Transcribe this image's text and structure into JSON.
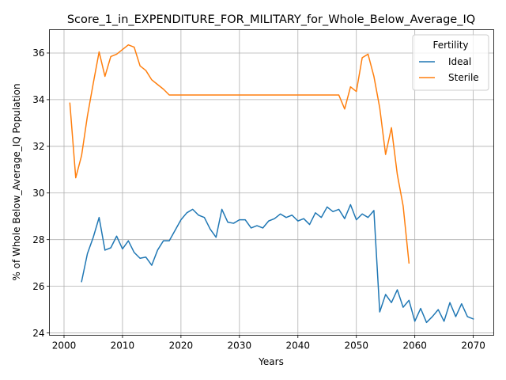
{
  "chart_data": {
    "type": "line",
    "title": "Score_1_in_EXPENDITURE_FOR_MILITARY_for_Whole_Below_Average_IQ",
    "xlabel": "Years",
    "ylabel": "% of Whole Below_Average_IQ Population",
    "xlim": [
      1997.5,
      2073.5
    ],
    "ylim": [
      23.9,
      37.0
    ],
    "xticks": [
      2000,
      2010,
      2020,
      2030,
      2040,
      2050,
      2060,
      2070
    ],
    "yticks": [
      24,
      26,
      28,
      30,
      32,
      34,
      36
    ],
    "grid": true,
    "legend": {
      "title": "Fertility",
      "placement": "top-right"
    },
    "series": [
      {
        "name": "Ideal",
        "color": "#1f77b4",
        "x": [
          2003,
          2004,
          2005,
          2006,
          2007,
          2008,
          2009,
          2010,
          2011,
          2012,
          2013,
          2014,
          2015,
          2016,
          2017,
          2018,
          2019,
          2020,
          2021,
          2022,
          2023,
          2024,
          2025,
          2026,
          2027,
          2028,
          2029,
          2030,
          2031,
          2032,
          2033,
          2034,
          2035,
          2036,
          2037,
          2038,
          2039,
          2040,
          2041,
          2042,
          2043,
          2044,
          2045,
          2046,
          2047,
          2048,
          2049,
          2050,
          2051,
          2052,
          2053,
          2054,
          2055,
          2056,
          2057,
          2058,
          2059,
          2060,
          2061,
          2062,
          2063,
          2064,
          2065,
          2066,
          2067,
          2068,
          2069,
          2070
        ],
        "y": [
          26.2,
          27.4,
          28.1,
          28.95,
          27.55,
          27.65,
          28.15,
          27.6,
          27.95,
          27.45,
          27.2,
          27.25,
          26.9,
          27.55,
          27.95,
          27.95,
          28.4,
          28.85,
          29.15,
          29.3,
          29.05,
          28.95,
          28.45,
          28.1,
          29.3,
          28.75,
          28.7,
          28.85,
          28.85,
          28.5,
          28.6,
          28.5,
          28.8,
          28.9,
          29.1,
          28.95,
          29.05,
          28.8,
          28.9,
          28.65,
          29.15,
          28.95,
          29.4,
          29.2,
          29.3,
          28.9,
          29.5,
          28.85,
          29.1,
          28.95,
          29.25,
          24.9,
          25.65,
          25.3,
          25.85,
          25.1,
          25.4,
          24.5,
          25.05,
          24.45,
          24.7,
          25.0,
          24.5,
          25.3,
          24.7,
          25.25,
          24.7,
          24.6
        ]
      },
      {
        "name": "Sterile",
        "color": "#ff7f0e",
        "x": [
          2001,
          2002,
          2003,
          2004,
          2005,
          2006,
          2007,
          2008,
          2009,
          2010,
          2011,
          2012,
          2013,
          2014,
          2015,
          2016,
          2017,
          2018,
          2019,
          2020,
          2021,
          2022,
          2023,
          2024,
          2025,
          2026,
          2027,
          2028,
          2029,
          2030,
          2031,
          2032,
          2033,
          2034,
          2035,
          2036,
          2037,
          2038,
          2039,
          2040,
          2041,
          2042,
          2043,
          2044,
          2045,
          2046,
          2047,
          2048,
          2049,
          2050,
          2051,
          2052,
          2053,
          2054,
          2055,
          2056,
          2057,
          2058,
          2059
        ],
        "y": [
          33.85,
          30.65,
          31.6,
          33.3,
          34.7,
          36.05,
          35.0,
          35.85,
          35.95,
          36.15,
          36.35,
          36.25,
          35.45,
          35.25,
          34.85,
          34.65,
          34.45,
          34.2,
          34.2,
          34.2,
          34.2,
          34.2,
          34.2,
          34.2,
          34.2,
          34.2,
          34.2,
          34.2,
          34.2,
          34.2,
          34.2,
          34.2,
          34.2,
          34.2,
          34.2,
          34.2,
          34.2,
          34.2,
          34.2,
          34.2,
          34.2,
          34.2,
          34.2,
          34.2,
          34.2,
          34.2,
          34.2,
          33.6,
          34.55,
          34.35,
          35.8,
          35.95,
          35.0,
          33.65,
          31.65,
          32.8,
          30.8,
          29.45,
          27.0
        ]
      }
    ]
  }
}
